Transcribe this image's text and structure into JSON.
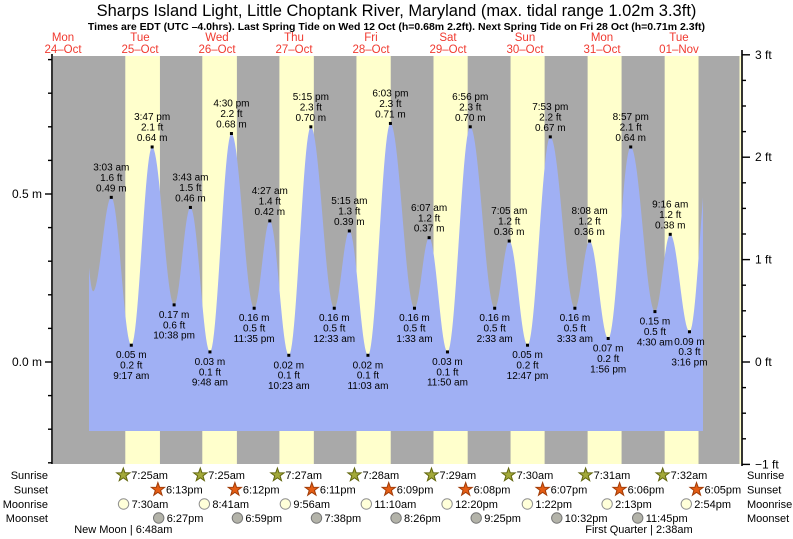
{
  "title": "Sharps Island Light, Little Choptank River, Maryland (max. tidal range 1.02m 3.3ft)",
  "subtitle": "Times are EDT (UTC –4.0hrs). Last Spring Tide on Wed 12 Oct (h=0.68m 2.2ft). Next Spring Tide on Fri 28 Oct (h=0.71m 2.3ft)",
  "colors": {
    "day_band": "#ffffcc",
    "night_band": "#a9a9a9",
    "tide_fill": "#a0b0f4",
    "day_label_red": "#f03a30",
    "sunrise_star_fill": "#a3a93a",
    "sunrise_star_stroke": "#61660e",
    "sunset_star_fill": "#e55d14",
    "sunset_star_stroke": "#a03c08",
    "moonrise_circle_fill": "#ffffd9",
    "moonrise_circle_stroke": "#909090",
    "moonset_circle_fill": "#b3b3a9",
    "moonset_circle_stroke": "#757575",
    "annotation_text": "#000000"
  },
  "days": [
    {
      "weekday": "Mon",
      "date": "24–Oct"
    },
    {
      "weekday": "Tue",
      "date": "25–Oct"
    },
    {
      "weekday": "Wed",
      "date": "26–Oct"
    },
    {
      "weekday": "Thu",
      "date": "27–Oct"
    },
    {
      "weekday": "Fri",
      "date": "28–Oct"
    },
    {
      "weekday": "Sat",
      "date": "29–Oct"
    },
    {
      "weekday": "Sun",
      "date": "30–Oct"
    },
    {
      "weekday": "Mon",
      "date": "31–Oct"
    },
    {
      "weekday": "Tue",
      "date": "01–Nov"
    }
  ],
  "axis": {
    "left_ticks": [
      {
        "label": "0.5 m",
        "value_m": 0.5
      },
      {
        "label": "0.0 m",
        "value_m": 0.0
      }
    ],
    "right_ticks": [
      {
        "label": "3 ft",
        "value_ft": 3
      },
      {
        "label": "2 ft",
        "value_ft": 2
      },
      {
        "label": "1 ft",
        "value_ft": 1
      },
      {
        "label": "0 ft",
        "value_ft": 0
      },
      {
        "label": "−1 ft",
        "value_ft": -1
      }
    ]
  },
  "chart_data": {
    "type": "area",
    "title": "Tide height curve, Oct 24 – Nov 01",
    "unit_left": "m",
    "unit_right": "ft",
    "y_range_ft": [
      -1,
      3
    ],
    "grid": false,
    "tides": [
      {
        "day": 1,
        "time": "3:03 am",
        "height_m": 0.49,
        "height_ft": 1.6,
        "type": "high"
      },
      {
        "day": 1,
        "time": "9:17 am",
        "height_m": 0.05,
        "height_ft": 0.2,
        "type": "low"
      },
      {
        "day": 1,
        "time": "3:47 pm",
        "height_m": 0.64,
        "height_ft": 2.1,
        "type": "high"
      },
      {
        "day": 1,
        "time": "10:38 pm",
        "height_m": 0.17,
        "height_ft": 0.6,
        "type": "low"
      },
      {
        "day": 2,
        "time": "3:43 am",
        "height_m": 0.46,
        "height_ft": 1.5,
        "type": "high"
      },
      {
        "day": 2,
        "time": "9:48 am",
        "height_m": 0.03,
        "height_ft": 0.1,
        "type": "low"
      },
      {
        "day": 2,
        "time": "4:30 pm",
        "height_m": 0.68,
        "height_ft": 2.2,
        "type": "high"
      },
      {
        "day": 2,
        "time": "11:35 pm",
        "height_m": 0.16,
        "height_ft": 0.5,
        "type": "low"
      },
      {
        "day": 3,
        "time": "4:27 am",
        "height_m": 0.42,
        "height_ft": 1.4,
        "type": "high"
      },
      {
        "day": 3,
        "time": "10:23 am",
        "height_m": 0.02,
        "height_ft": 0.1,
        "type": "low"
      },
      {
        "day": 3,
        "time": "5:15 pm",
        "height_m": 0.7,
        "height_ft": 2.3,
        "type": "high"
      },
      {
        "day": 4,
        "time": "12:33 am",
        "height_m": 0.16,
        "height_ft": 0.5,
        "type": "low"
      },
      {
        "day": 4,
        "time": "5:15 am",
        "height_m": 0.39,
        "height_ft": 1.3,
        "type": "high"
      },
      {
        "day": 4,
        "time": "11:03 am",
        "height_m": 0.02,
        "height_ft": 0.1,
        "type": "low"
      },
      {
        "day": 4,
        "time": "6:03 pm",
        "height_m": 0.71,
        "height_ft": 2.3,
        "type": "high"
      },
      {
        "day": 5,
        "time": "1:33 am",
        "height_m": 0.16,
        "height_ft": 0.5,
        "type": "low"
      },
      {
        "day": 5,
        "time": "6:07 am",
        "height_m": 0.37,
        "height_ft": 1.2,
        "type": "high"
      },
      {
        "day": 5,
        "time": "11:50 am",
        "height_m": 0.03,
        "height_ft": 0.1,
        "type": "low"
      },
      {
        "day": 5,
        "time": "6:56 pm",
        "height_m": 0.7,
        "height_ft": 2.3,
        "type": "high"
      },
      {
        "day": 6,
        "time": "2:33 am",
        "height_m": 0.16,
        "height_ft": 0.5,
        "type": "low"
      },
      {
        "day": 6,
        "time": "7:05 am",
        "height_m": 0.36,
        "height_ft": 1.2,
        "type": "high"
      },
      {
        "day": 6,
        "time": "12:47 pm",
        "height_m": 0.05,
        "height_ft": 0.2,
        "type": "low"
      },
      {
        "day": 6,
        "time": "7:53 pm",
        "height_m": 0.67,
        "height_ft": 2.2,
        "type": "high"
      },
      {
        "day": 7,
        "time": "3:33 am",
        "height_m": 0.16,
        "height_ft": 0.5,
        "type": "low"
      },
      {
        "day": 7,
        "time": "8:08 am",
        "height_m": 0.36,
        "height_ft": 1.2,
        "type": "high"
      },
      {
        "day": 7,
        "time": "1:56 pm",
        "height_m": 0.07,
        "height_ft": 0.2,
        "type": "low"
      },
      {
        "day": 7,
        "time": "8:57 pm",
        "height_m": 0.64,
        "height_ft": 2.1,
        "type": "high"
      },
      {
        "day": 8,
        "time": "4:30 am",
        "height_m": 0.15,
        "height_ft": 0.5,
        "type": "low"
      },
      {
        "day": 8,
        "time": "9:16 am",
        "height_m": 0.38,
        "height_ft": 1.2,
        "type": "high"
      },
      {
        "day": 8,
        "time": "3:16 pm",
        "height_m": 0.09,
        "height_ft": 0.3,
        "type": "low"
      }
    ],
    "curve_edges": {
      "start": {
        "day": 0,
        "time": "6:40 pm",
        "height_m": 0.37
      },
      "start_low": {
        "day": 0,
        "time": "9:20 pm",
        "height_m": 0.21
      },
      "end": {
        "day": 8,
        "time": "9:45 pm",
        "height_m": 0.64
      }
    }
  },
  "almanac": {
    "row_labels": [
      "Sunrise",
      "Sunset",
      "Moonrise",
      "Moonset"
    ],
    "sunrise": {
      "start_day": 1,
      "times": [
        "7:25am",
        "7:25am",
        "7:27am",
        "7:28am",
        "7:29am",
        "7:30am",
        "7:31am",
        "7:32am"
      ]
    },
    "sunset": {
      "start_day": 1,
      "times": [
        "6:13pm",
        "6:12pm",
        "6:11pm",
        "6:09pm",
        "6:08pm",
        "6:07pm",
        "6:06pm",
        "6:05pm"
      ]
    },
    "moonrise": {
      "start_day": 1,
      "times": [
        "7:30am",
        "8:41am",
        "9:56am",
        "11:10am",
        "12:20pm",
        "1:22pm",
        "2:13pm",
        "2:54pm"
      ]
    },
    "moonset": {
      "start_day": 1,
      "times": [
        "6:27pm",
        "6:59pm",
        "7:38pm",
        "8:26pm",
        "9:25pm",
        "10:32pm",
        "11:45pm"
      ]
    },
    "phase_notes": [
      {
        "text": "New Moon | 6:48am",
        "day": 1,
        "time": "6:48am"
      },
      {
        "text": "First Quarter | 2:38am",
        "day": 8,
        "time": "2:38am"
      }
    ]
  }
}
